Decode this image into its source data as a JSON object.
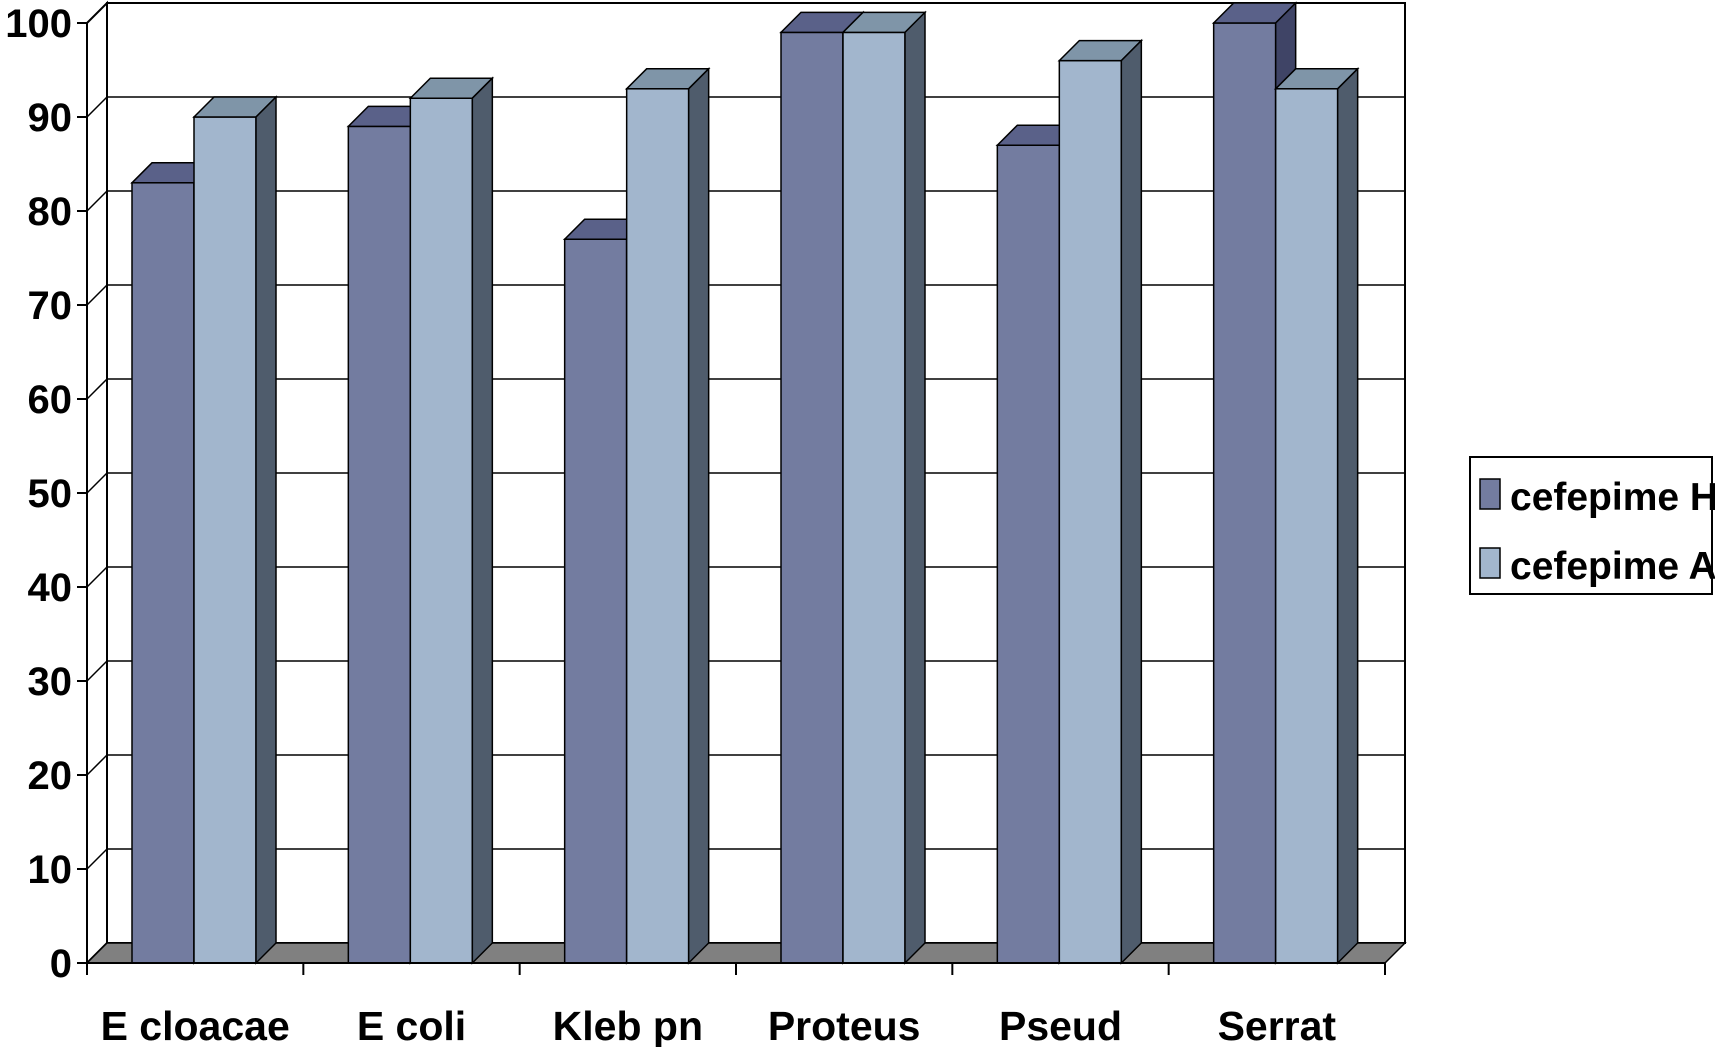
{
  "chart_data": {
    "type": "bar",
    "categories": [
      "E cloacae",
      "E coli",
      "Kleb pn",
      "Proteus",
      "Pseud",
      "Serrat"
    ],
    "series": [
      {
        "name": "cefepime H",
        "values": [
          83,
          89,
          77,
          99,
          87,
          100
        ],
        "color": "#737ca0",
        "top_color": "#5a6189",
        "side_color": "#3f4466"
      },
      {
        "name": "cefepime A",
        "values": [
          90,
          92,
          93,
          99,
          96,
          93
        ],
        "color": "#a2b6cd",
        "top_color": "#7f95a8",
        "side_color": "#4f5c6c"
      }
    ],
    "yticks": [
      0,
      10,
      20,
      30,
      40,
      50,
      60,
      70,
      80,
      90,
      100
    ],
    "ylim": [
      0,
      100
    ],
    "grid": true,
    "legend": "right",
    "title": "",
    "xlabel": "",
    "ylabel": ""
  }
}
